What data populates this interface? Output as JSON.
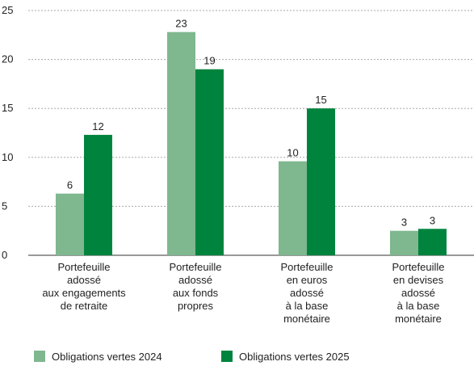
{
  "chart_data": {
    "type": "bar",
    "categories": [
      "Portefeuille\nadossé\naux engagements\nde retraite",
      "Portefeuille\nadossé\naux fonds\npropres",
      "Portefeuille\nen euros\nadossé\nà la base\nmonétaire",
      "Portefeuille\nen devises\nadossé\nà la base\nmonétaire"
    ],
    "series": [
      {
        "name": "Obligations vertes 2024",
        "color": "#7fb78f",
        "values": [
          6.3,
          22.8,
          9.6,
          2.5
        ],
        "value_labels": [
          "6",
          "23",
          "10",
          "3"
        ]
      },
      {
        "name": "Obligations vertes 2025",
        "color": "#00843d",
        "values": [
          12.3,
          19,
          15,
          2.7
        ],
        "value_labels": [
          "12",
          "19",
          "15",
          "3"
        ]
      }
    ],
    "ylim": [
      0,
      25
    ],
    "yticks": [
      0,
      5,
      10,
      15,
      20,
      25
    ],
    "grid": true,
    "legend": "bottom"
  }
}
